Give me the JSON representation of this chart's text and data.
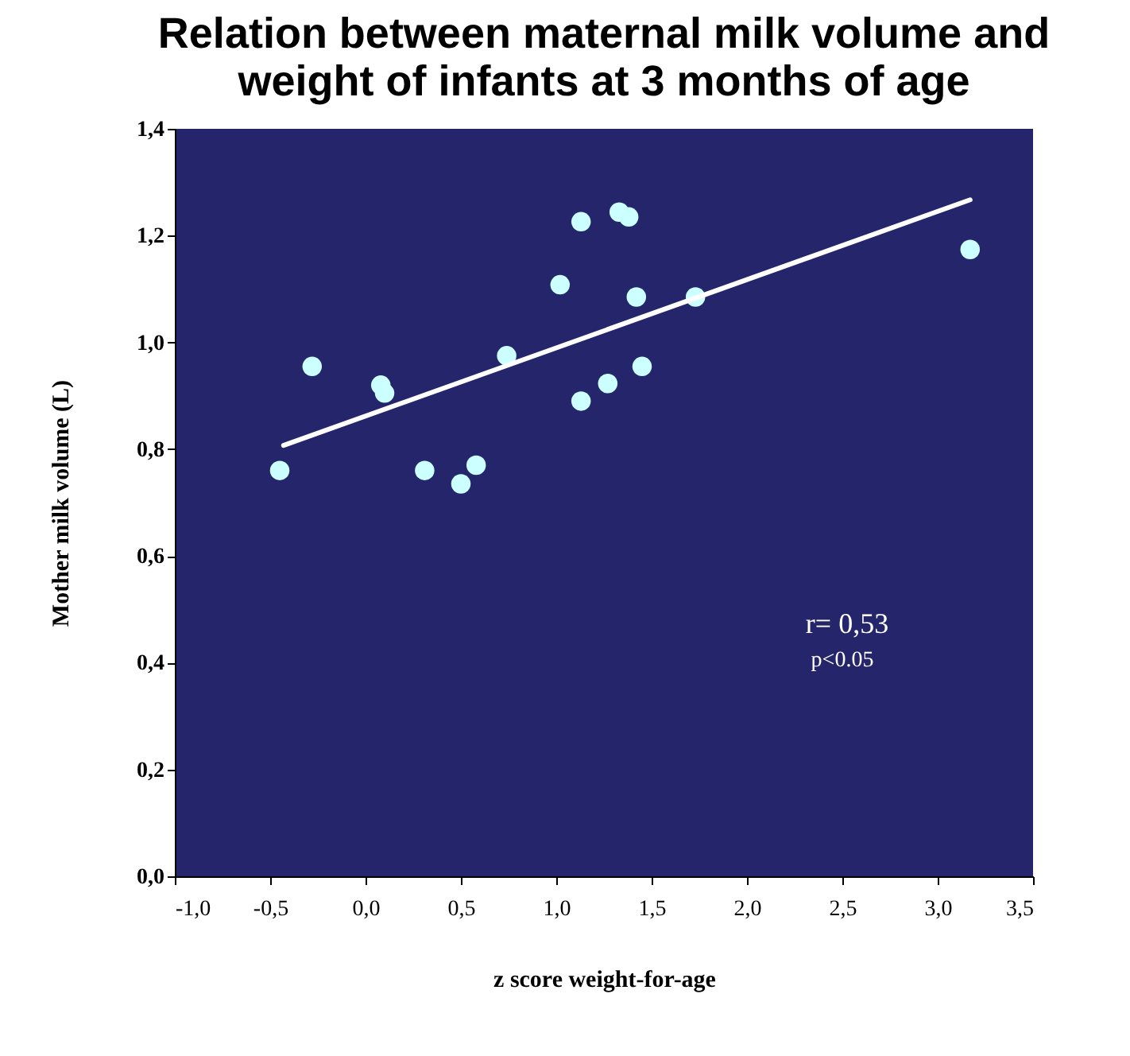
{
  "chart_data": {
    "type": "scatter",
    "title": "Relation between maternal milk volume and weight of infants at 3 months of age",
    "xlabel": "z score weight-for-age",
    "ylabel": "Mother milk volume (L)",
    "annotations": [
      "r= 0,53",
      "p<0.05"
    ],
    "x": [
      -0.45,
      -0.28,
      0.08,
      0.1,
      0.31,
      0.5,
      0.58,
      0.74,
      1.02,
      1.13,
      1.13,
      1.27,
      1.33,
      1.38,
      1.42,
      1.45,
      1.73,
      3.17
    ],
    "series": [
      {
        "color": "#ccffff",
        "marker": "circle",
        "values": [
          0.76,
          0.955,
          0.92,
          0.905,
          0.76,
          0.735,
          0.77,
          0.975,
          1.108,
          1.226,
          0.89,
          0.923,
          1.244,
          1.235,
          1.085,
          0.955,
          1.085,
          1.174
        ]
      },
      {
        "type": "line",
        "color": "#ffffff",
        "marker": "none",
        "x": [
          -0.43,
          3.17
        ],
        "values": [
          0.807,
          1.267
        ]
      }
    ],
    "xlim": [
      -1.0,
      3.5
    ],
    "xticks": [
      {
        "value": -1.0,
        "label": "-1,0"
      },
      {
        "value": -0.5,
        "label": "-0,5"
      },
      {
        "value": 0,
        "label": "0,0"
      },
      {
        "value": 0.5,
        "label": "0,5"
      },
      {
        "value": 1.0,
        "label": "1,0"
      },
      {
        "value": 1.5,
        "label": "1,5"
      },
      {
        "value": 2.0,
        "label": "2,0"
      },
      {
        "value": 2.5,
        "label": "2,5"
      },
      {
        "value": 3.0,
        "label": "3,0"
      },
      {
        "value": 3.5,
        "label": "3,5"
      }
    ],
    "ylim": [
      0,
      1.4
    ],
    "yticks": [
      {
        "value": 0,
        "label": "0,0"
      },
      {
        "value": 0.2,
        "label": "0,2"
      },
      {
        "value": 0.4,
        "label": "0,4"
      },
      {
        "value": 0.6,
        "label": "0,6"
      },
      {
        "value": 0.8,
        "label": "0,8"
      },
      {
        "value": 1.0,
        "label": "1,0"
      },
      {
        "value": 1.2,
        "label": "1,2"
      },
      {
        "value": 1.4,
        "label": "1,4"
      }
    ],
    "grid": false
  }
}
